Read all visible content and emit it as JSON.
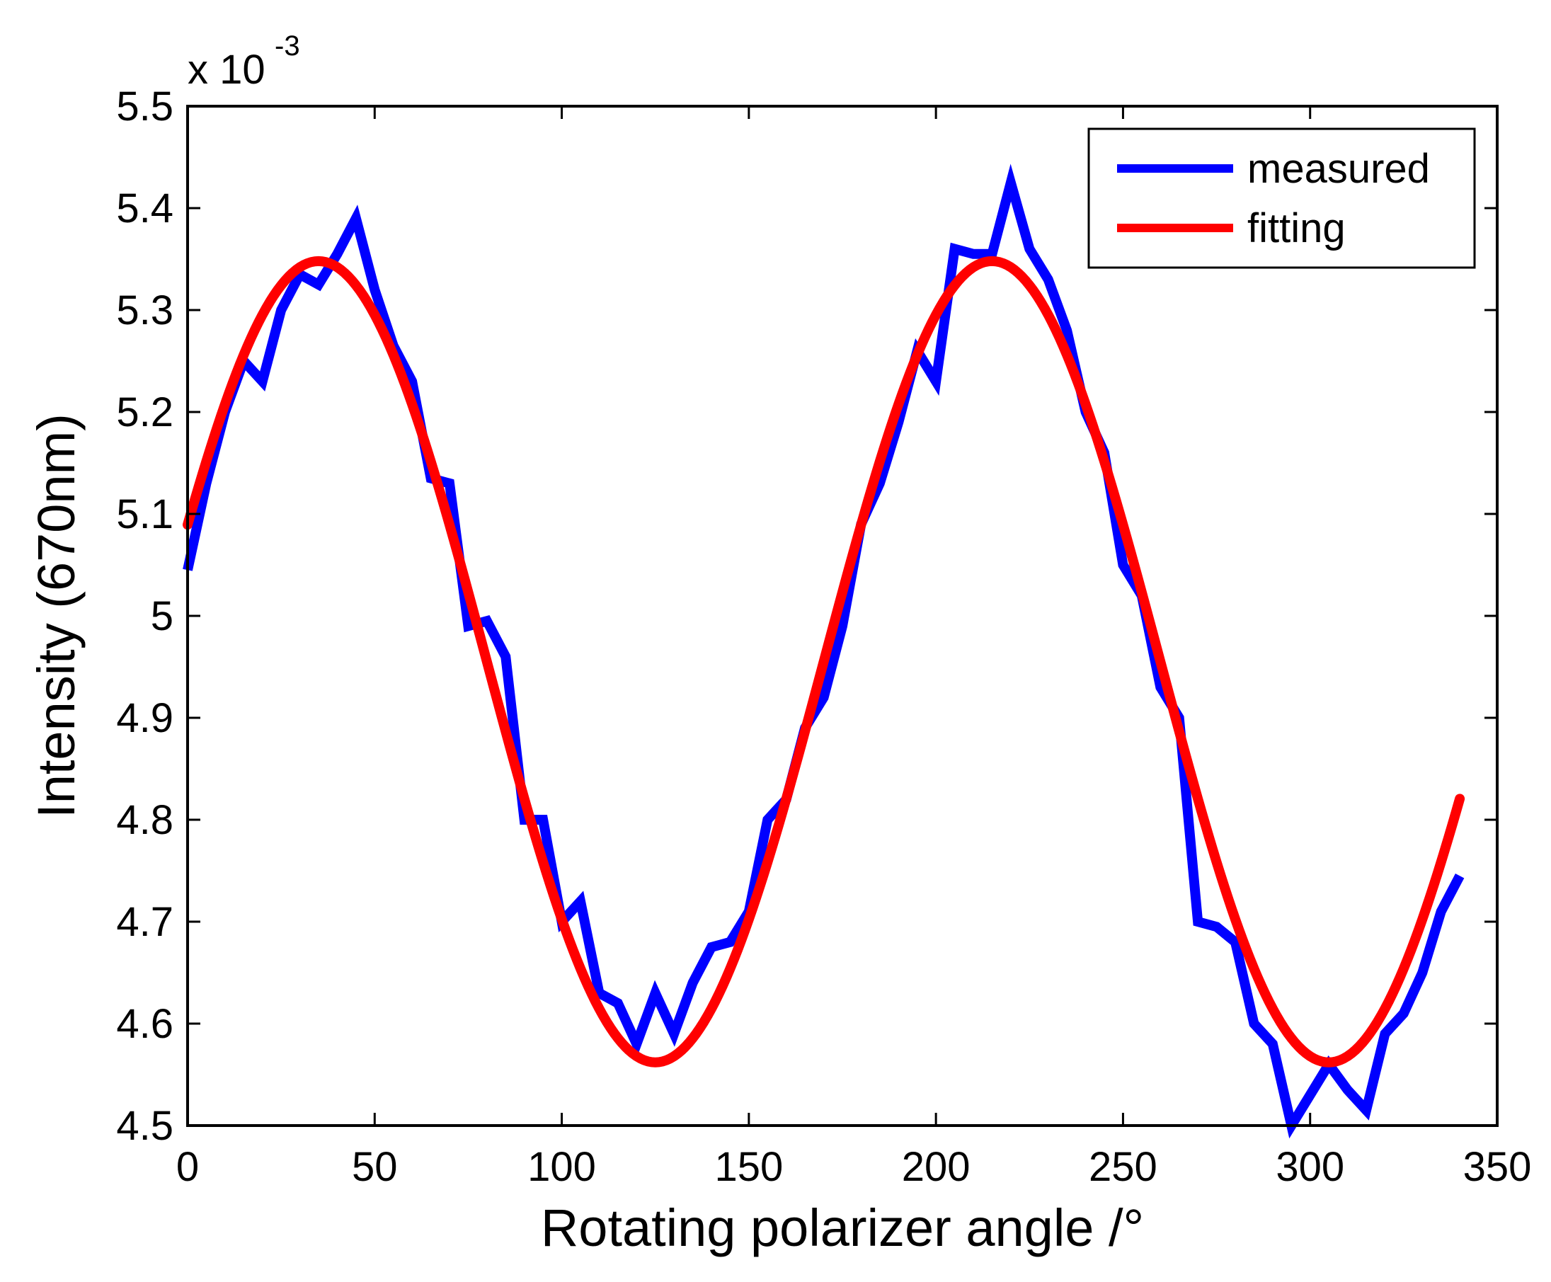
{
  "chart_data": {
    "type": "line",
    "xlabel": "Rotating polarizer angle /°",
    "ylabel": "Intensity (670nm)",
    "y_multiplier_label": "x 10",
    "y_multiplier_exponent": "-3",
    "xlim": [
      0,
      350
    ],
    "ylim": [
      4.5,
      5.5
    ],
    "x_ticks": [
      "0",
      "50",
      "100",
      "150",
      "200",
      "250",
      "300",
      "350"
    ],
    "y_ticks": [
      "4.5",
      "4.6",
      "4.7",
      "4.8",
      "4.9",
      "5",
      "5.1",
      "5.2",
      "5.3",
      "5.4",
      "5.5"
    ],
    "legend_position": "top-right",
    "series": [
      {
        "name": "measured",
        "color": "#0000ff",
        "x": [
          0,
          5,
          10,
          15,
          20,
          25,
          30,
          35,
          40,
          45,
          50,
          55,
          60,
          65,
          70,
          75,
          80,
          85,
          90,
          95,
          100,
          105,
          110,
          115,
          120,
          125,
          130,
          135,
          140,
          145,
          150,
          155,
          160,
          165,
          170,
          175,
          180,
          185,
          190,
          195,
          200,
          205,
          210,
          215,
          220,
          225,
          230,
          235,
          240,
          245,
          250,
          255,
          260,
          265,
          270,
          275,
          280,
          285,
          290,
          295,
          300,
          305,
          310,
          315,
          320,
          325,
          330,
          335,
          340
        ],
        "values": [
          5.045,
          5.13,
          5.2,
          5.25,
          5.23,
          5.3,
          5.335,
          5.325,
          5.355,
          5.39,
          5.32,
          5.265,
          5.23,
          5.135,
          5.13,
          4.99,
          4.995,
          4.96,
          4.8,
          4.8,
          4.7,
          4.72,
          4.63,
          4.62,
          4.58,
          4.63,
          4.59,
          4.64,
          4.675,
          4.68,
          4.71,
          4.8,
          4.82,
          4.89,
          4.92,
          4.99,
          5.09,
          5.13,
          5.19,
          5.26,
          5.23,
          5.36,
          5.355,
          5.355,
          5.425,
          5.36,
          5.33,
          5.28,
          5.2,
          5.16,
          5.05,
          5.02,
          4.93,
          4.9,
          4.7,
          4.695,
          4.68,
          4.6,
          4.58,
          4.5,
          4.53,
          4.56,
          4.535,
          4.515,
          4.59,
          4.61,
          4.65,
          4.71,
          4.745
        ]
      },
      {
        "name": "fitting",
        "color": "#ff0000",
        "model": {
          "offset": 4.955,
          "amplitude": 0.393,
          "period": 180,
          "peak_at": 35
        },
        "x_range": [
          0,
          340
        ]
      }
    ]
  }
}
